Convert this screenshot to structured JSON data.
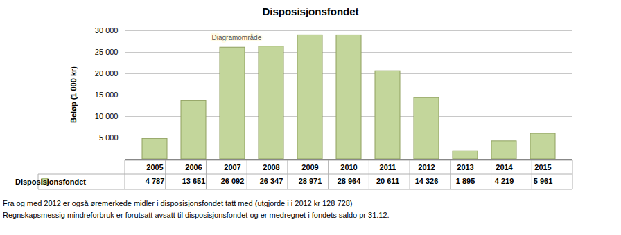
{
  "chart_data": {
    "type": "bar",
    "title": "Disposisjonsfondet",
    "y_label": "Beløp (1 000 kr)",
    "categories": [
      "2005",
      "2006",
      "2007",
      "2008",
      "2009",
      "2010",
      "2011",
      "2012",
      "2013",
      "2014",
      "2015"
    ],
    "series": [
      {
        "name": "Disposisjonsfondet",
        "color": "#c3d69b",
        "values": [
          4787,
          13651,
          26092,
          26347,
          28971,
          28964,
          20611,
          14326,
          1895,
          4219,
          5961
        ],
        "value_labels": [
          "4 787",
          "13 651",
          "26 092",
          "26 347",
          "28 971",
          "28 964",
          "20 611",
          "14 326",
          "1 895",
          "4 219",
          "5 961"
        ]
      }
    ],
    "ylim": [
      0,
      30000
    ],
    "yticks": [
      {
        "value": 0,
        "label": "-"
      },
      {
        "value": 5000,
        "label": "5 000"
      },
      {
        "value": 10000,
        "label": "10 000"
      },
      {
        "value": 15000,
        "label": "15 000"
      },
      {
        "value": 20000,
        "label": "20 000"
      },
      {
        "value": 25000,
        "label": "25 000"
      },
      {
        "value": 30000,
        "label": "30 000"
      }
    ],
    "grid": true,
    "annotations": [
      "Diagramområde"
    ],
    "footnotes": [
      "Fra og med 2012 er også øremerkede midler i disposisjonsfondet tatt med (utgjorde i i 2012 kr 128 728)",
      "Regnskapsmessig mindreforbruk er forutsatt avsatt til disposisjonsfondet og er medregnet i fondets saldo pr 31.12."
    ]
  }
}
